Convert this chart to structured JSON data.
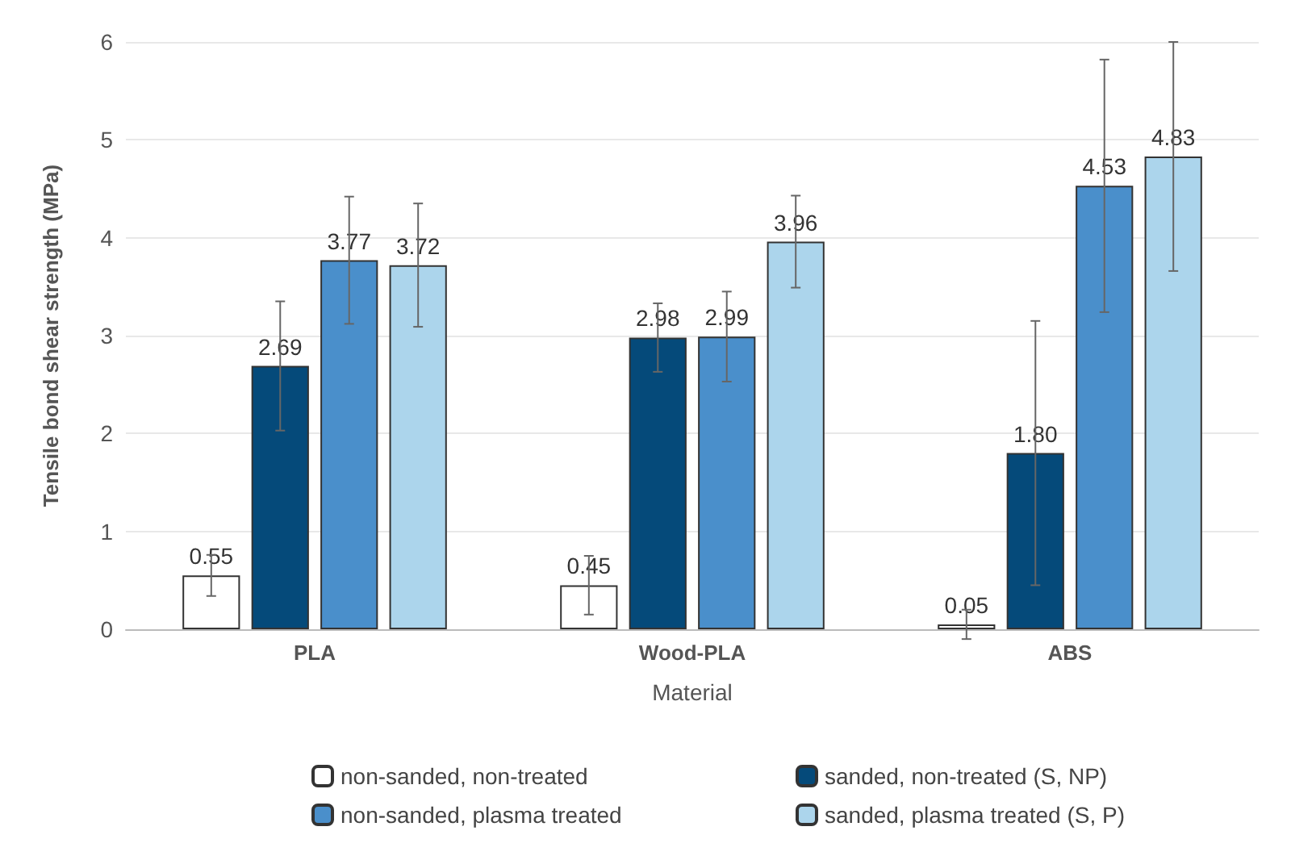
{
  "chart_data": {
    "type": "bar",
    "xlabel": "Material",
    "ylabel": "Tensile bond shear strength (MPa)",
    "categories": [
      "PLA",
      "Wood-PLA",
      "ABS"
    ],
    "series": [
      {
        "name": "non-sanded, non-treated",
        "color": "#ffffff",
        "values": [
          0.55,
          0.45,
          0.05
        ],
        "value_labels": [
          "0.55",
          "0.45",
          "0.05"
        ],
        "errors": [
          0.21,
          0.3,
          0.15
        ]
      },
      {
        "name": "sanded, non-treated (S, NP)",
        "color": "#054a7a",
        "values": [
          2.69,
          2.98,
          1.8
        ],
        "value_labels": [
          "2.69",
          "2.98",
          "1.80"
        ],
        "errors": [
          0.66,
          0.35,
          1.35
        ]
      },
      {
        "name": "non-sanded, plasma treated",
        "color": "#4a8fcb",
        "values": [
          3.77,
          2.99,
          4.53
        ],
        "value_labels": [
          "3.77",
          "2.99",
          "4.53"
        ],
        "errors": [
          0.65,
          0.46,
          1.29
        ]
      },
      {
        "name": "sanded, plasma treated (S, P)",
        "color": "#acd5ec",
        "values": [
          3.72,
          3.96,
          4.83
        ],
        "value_labels": [
          "3.72",
          "3.96",
          "4.83"
        ],
        "errors": [
          0.63,
          0.47,
          [
            3.66,
            6
          ]
        ]
      }
    ],
    "ylim": [
      0,
      6
    ],
    "yticks": [
      0,
      1,
      2,
      3,
      4,
      5,
      6
    ],
    "grid": "y",
    "legend": "bottom"
  }
}
